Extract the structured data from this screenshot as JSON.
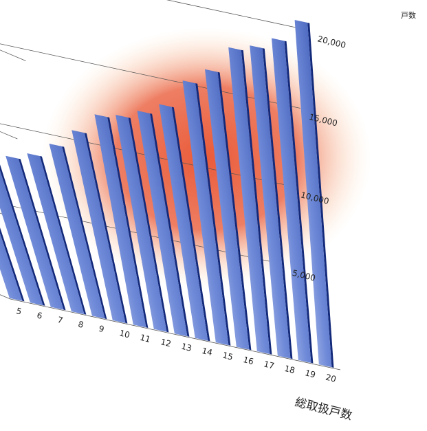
{
  "chart_data": {
    "type": "bar",
    "title": "",
    "xlabel": "総取扱戸数",
    "ylabel": "戸数",
    "categories": [
      "5",
      "6",
      "7",
      "8",
      "9",
      "10",
      "11",
      "12",
      "13",
      "14",
      "15",
      "16",
      "17",
      "18",
      "19",
      "20"
    ],
    "values": [
      7400,
      7650,
      8100,
      8550,
      9450,
      10600,
      11900,
      12150,
      12700,
      13400,
      15200,
      16200,
      17900,
      18300,
      19050,
      20500
    ],
    "y_ticks": [
      5000,
      10000,
      15000,
      20000
    ],
    "y_tick_labels": [
      "5,000",
      "10,000",
      "15,000",
      "20,000"
    ],
    "ylim": [
      0,
      20000
    ],
    "grid": true,
    "legend": "none",
    "colors": {
      "bar_light": "#e3e8fa",
      "bar_mid": "#6f8ad8",
      "bar_dark": "#1f3d9e",
      "bar_side": "#13297a",
      "glow_center": "#e8532f",
      "glow_edge": "#ffe2b8",
      "gridline": "#555555"
    }
  }
}
